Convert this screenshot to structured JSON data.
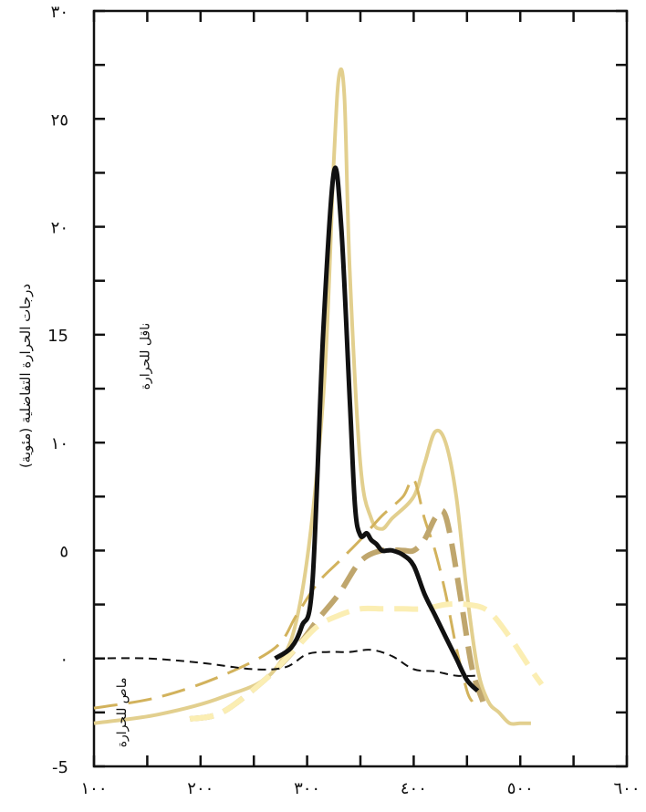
{
  "chart_data": {
    "type": "line",
    "title": "",
    "xlabel": "",
    "ylabel": "درجات الحرارة التفاضلية (مئوية)",
    "xlim": [
      100,
      600
    ],
    "ylim": [
      -5,
      30
    ],
    "grid": false,
    "x_ticks": [
      {
        "value": 100,
        "label": "١٠٠"
      },
      {
        "value": 200,
        "label": "٢٠٠"
      },
      {
        "value": 300,
        "label": "٣٠٠"
      },
      {
        "value": 400,
        "label": "٤٠٠"
      },
      {
        "value": 500,
        "label": "٥٠٠"
      },
      {
        "value": 600,
        "label": "٦٠٠"
      }
    ],
    "y_ticks": [
      {
        "value": -5,
        "label": "-5"
      },
      {
        "value": 0,
        "label": "٠"
      },
      {
        "value": 5,
        "label": "٥"
      },
      {
        "value": 10,
        "label": "١٠"
      },
      {
        "value": 15,
        "label": "15"
      },
      {
        "value": 20,
        "label": "٢٠"
      },
      {
        "value": 25,
        "label": "٢٥"
      },
      {
        "value": 30,
        "label": "٣٠"
      }
    ],
    "annotations": [
      {
        "text": "ناقل للحرارة",
        "x": 152,
        "y": 14
      },
      {
        "text": "ماص للحرارة",
        "x": 130,
        "y": -2.5
      }
    ],
    "series": [
      {
        "color": "#e2cf8e",
        "dash": "solid",
        "width": 4,
        "x": [
          100,
          160,
          220,
          270,
          295,
          315,
          325,
          330,
          335,
          340,
          350,
          360,
          370,
          380,
          400,
          410,
          420,
          430,
          440,
          450,
          460,
          470,
          480,
          490,
          500,
          510
        ],
        "y": [
          -3.0,
          -2.6,
          -1.8,
          -0.5,
          3.0,
          12.0,
          23.0,
          27.0,
          26.0,
          18.0,
          9.0,
          6.5,
          6.0,
          6.5,
          7.5,
          9.0,
          10.5,
          10.0,
          7.5,
          3.0,
          -0.5,
          -2.0,
          -2.5,
          -3.0,
          -3.0,
          -3.0
        ]
      },
      {
        "color": "#d2b25c",
        "dash": "long",
        "width": 3,
        "x": [
          100,
          160,
          220,
          270,
          290,
          310,
          330,
          350,
          370,
          390,
          400,
          410,
          420,
          430,
          440,
          450,
          455
        ],
        "y": [
          -2.3,
          -1.8,
          -0.8,
          0.5,
          2.0,
          3.5,
          4.5,
          5.5,
          6.6,
          7.5,
          8.3,
          6.5,
          5.0,
          3.0,
          0.5,
          -1.5,
          -2.0
        ]
      },
      {
        "color": "#bfa66d",
        "dash": "long",
        "width": 6,
        "x": [
          190,
          220,
          260,
          290,
          310,
          330,
          350,
          370,
          390,
          400,
          410,
          420,
          428,
          435,
          445,
          455,
          465
        ],
        "y": [
          -2.8,
          -2.5,
          -1.0,
          0.5,
          1.8,
          3.0,
          4.5,
          5.0,
          5.0,
          5.0,
          5.5,
          6.5,
          6.8,
          5.5,
          2.5,
          -0.5,
          -2.0
        ]
      },
      {
        "color": "#fbeeb3",
        "dash": "long",
        "width": 6,
        "x": [
          190,
          220,
          260,
          290,
          310,
          330,
          350,
          370,
          390,
          410,
          430,
          450,
          470,
          490,
          510,
          520
        ],
        "y": [
          -2.8,
          -2.5,
          -1.0,
          0.5,
          1.5,
          2.0,
          2.3,
          2.3,
          2.3,
          2.3,
          2.5,
          2.5,
          2.2,
          1.0,
          -0.5,
          -1.2
        ]
      },
      {
        "color": "#111111",
        "dash": "short",
        "width": 2,
        "x": [
          100,
          150,
          200,
          250,
          280,
          300,
          320,
          340,
          360,
          380,
          400,
          420,
          440,
          460
        ],
        "y": [
          0.0,
          0.0,
          -0.2,
          -0.5,
          -0.4,
          0.2,
          0.3,
          0.3,
          0.4,
          0.1,
          -0.5,
          -0.6,
          -0.8,
          -0.8
        ]
      },
      {
        "color": "#111111",
        "dash": "solid",
        "width": 5,
        "x": [
          270,
          285,
          295,
          305,
          315,
          325,
          332,
          340,
          345,
          350,
          356,
          360,
          365,
          370,
          375,
          380,
          390,
          400,
          410,
          420,
          430,
          440,
          450,
          460
        ],
        "y": [
          0.0,
          0.5,
          1.5,
          3.5,
          15.0,
          22.5,
          20.0,
          12.0,
          7.0,
          5.7,
          5.8,
          5.5,
          5.3,
          5.0,
          5.0,
          5.0,
          4.8,
          4.3,
          3.0,
          2.0,
          1.0,
          0.0,
          -1.0,
          -1.5
        ]
      }
    ]
  }
}
